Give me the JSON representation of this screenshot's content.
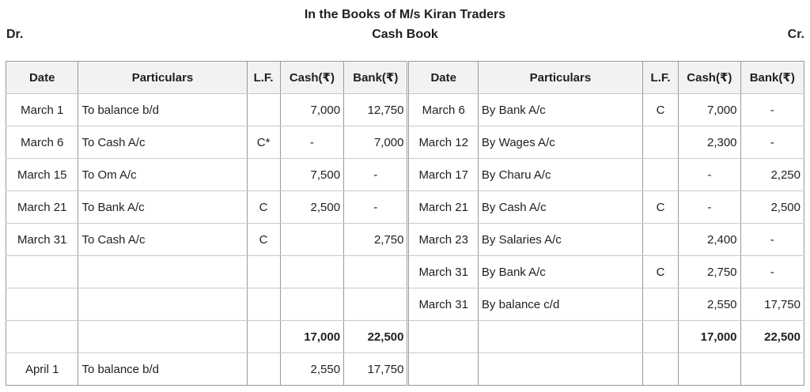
{
  "header": {
    "title": "In the Books of M/s Kiran Traders",
    "subtitle": "Cash Book",
    "dr_label": "Dr.",
    "cr_label": "Cr."
  },
  "table": {
    "columns": [
      "Date",
      "Particulars",
      "L.F.",
      "Cash(₹)",
      "Bank(₹)"
    ],
    "debit_rows": [
      {
        "date": "March 1",
        "particulars": "To balance b/d",
        "lf": "",
        "cash": "7,000",
        "bank": "12,750",
        "bold": false
      },
      {
        "date": "March 6",
        "particulars": "To Cash A/c",
        "lf": "C*",
        "cash": "-",
        "bank": "7,000",
        "bold": false
      },
      {
        "date": "March 15",
        "particulars": "To Om A/c",
        "lf": "",
        "cash": "7,500",
        "bank": "-",
        "bold": false
      },
      {
        "date": "March 21",
        "particulars": "To Bank A/c",
        "lf": "C",
        "cash": "2,500",
        "bank": "-",
        "bold": false
      },
      {
        "date": "March 31",
        "particulars": "To Cash A/c",
        "lf": "C",
        "cash": "",
        "bank": "2,750",
        "bold": false
      },
      {
        "date": "",
        "particulars": "",
        "lf": "",
        "cash": "",
        "bank": "",
        "bold": false
      },
      {
        "date": "",
        "particulars": "",
        "lf": "",
        "cash": "",
        "bank": "",
        "bold": false
      },
      {
        "date": "",
        "particulars": "",
        "lf": "",
        "cash": "17,000",
        "bank": "22,500",
        "bold": true
      },
      {
        "date": "April 1",
        "particulars": "To balance b/d",
        "lf": "",
        "cash": "2,550",
        "bank": "17,750",
        "bold": false
      }
    ],
    "credit_rows": [
      {
        "date": "March 6",
        "particulars": "By Bank A/c",
        "lf": "C",
        "cash": "7,000",
        "bank": "-",
        "bold": false
      },
      {
        "date": "March 12",
        "particulars": "By Wages A/c",
        "lf": "",
        "cash": "2,300",
        "bank": "-",
        "bold": false
      },
      {
        "date": "March 17",
        "particulars": "By Charu A/c",
        "lf": "",
        "cash": "-",
        "bank": "2,250",
        "bold": false
      },
      {
        "date": "March 21",
        "particulars": "By Cash A/c",
        "lf": "C",
        "cash": "-",
        "bank": "2,500",
        "bold": false
      },
      {
        "date": "March 23",
        "particulars": "By Salaries A/c",
        "lf": "",
        "cash": "2,400",
        "bank": "-",
        "bold": false
      },
      {
        "date": "March 31",
        "particulars": "By Bank A/c",
        "lf": "C",
        "cash": "2,750",
        "bank": "-",
        "bold": false
      },
      {
        "date": "March 31",
        "particulars": "By balance c/d",
        "lf": "",
        "cash": "2,550",
        "bank": "17,750",
        "bold": false
      },
      {
        "date": "",
        "particulars": "",
        "lf": "",
        "cash": "17,000",
        "bank": "22,500",
        "bold": true
      },
      {
        "date": "",
        "particulars": "",
        "lf": "",
        "cash": "",
        "bank": "",
        "bold": false
      }
    ],
    "colors": {
      "header_bg": "#f2f2f2",
      "border_vertical": "#9a9a9a",
      "border_horizontal": "#c9c9c9",
      "text": "#1f1f1f"
    }
  }
}
